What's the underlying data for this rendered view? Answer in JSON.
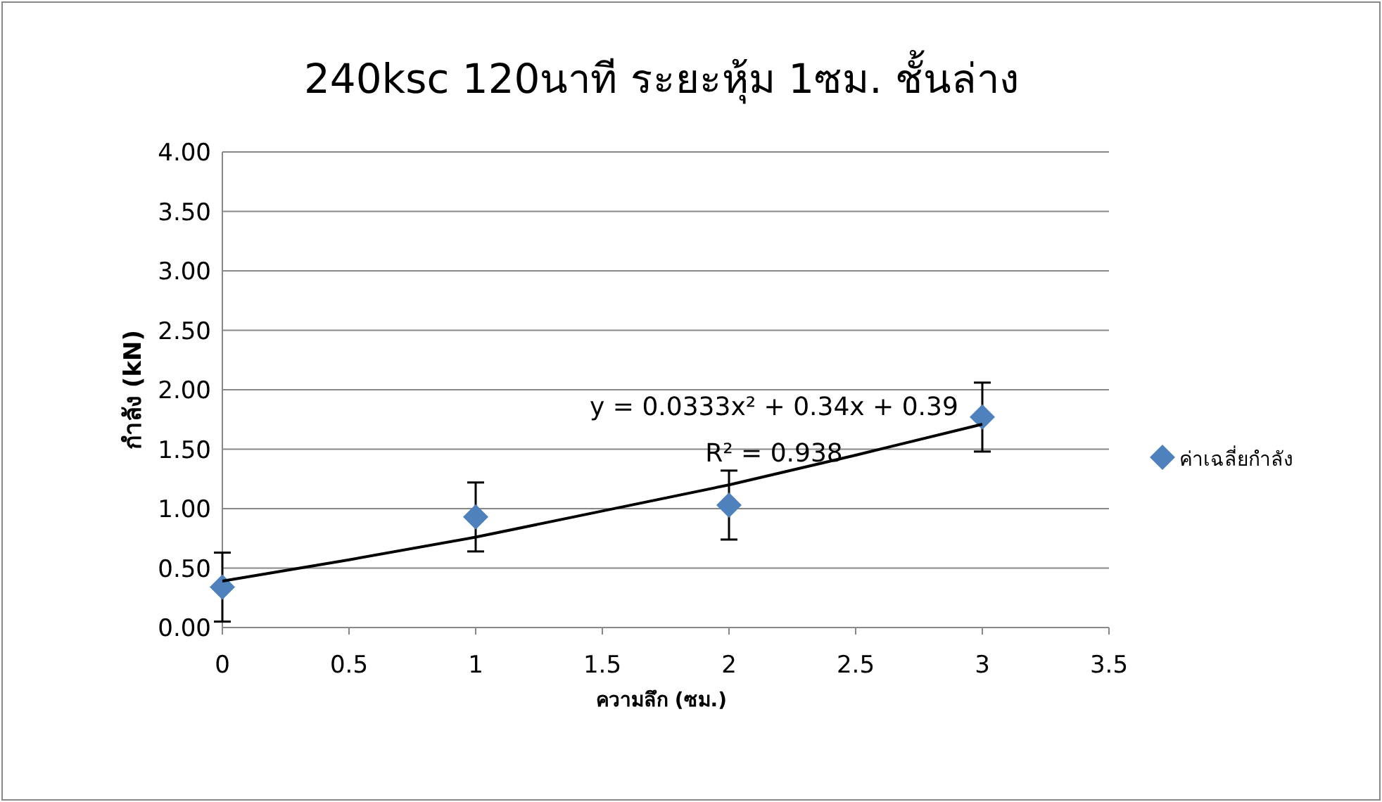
{
  "chart_data": {
    "type": "scatter",
    "title": "240ksc 120นาที ระยะหุ้ม 1ซม. ชั้นล่าง",
    "xlabel": "ความลึก (ซม.)",
    "ylabel": "กำลัง (kN)",
    "x": [
      0,
      1,
      2,
      3
    ],
    "series": [
      {
        "name": "ค่าเฉลี่ยกำลัง",
        "color": "#4f81bd",
        "marker": "diamond",
        "values": [
          0.34,
          0.93,
          1.03,
          1.77
        ],
        "errors": [
          0.29,
          0.29,
          0.29,
          0.29
        ]
      },
      {
        "type": "line",
        "color": "#000000",
        "marker": "none",
        "x": [
          0,
          0.5,
          1,
          1.5,
          2,
          2.5,
          3
        ],
        "values": [
          0.39,
          0.57,
          0.76,
          0.98,
          1.2,
          1.45,
          1.71
        ]
      }
    ],
    "annotations": [
      "y = 0.0333x² + 0.34x + 0.39",
      "R² = 0.938"
    ],
    "xlim": [
      0,
      3.5
    ],
    "xticks": [
      0,
      0.5,
      1,
      1.5,
      2,
      2.5,
      3,
      3.5
    ],
    "ylim": [
      0,
      4
    ],
    "yticks": [
      {
        "value": 0,
        "label": "0.00"
      },
      {
        "value": 0.5,
        "label": "0.50"
      },
      {
        "value": 1,
        "label": "1.00"
      },
      {
        "value": 1.5,
        "label": "1.50"
      },
      {
        "value": 2,
        "label": "2.00"
      },
      {
        "value": 2.5,
        "label": "2.50"
      },
      {
        "value": 3,
        "label": "3.00"
      },
      {
        "value": 3.5,
        "label": "3.50"
      },
      {
        "value": 4,
        "label": "4.00"
      }
    ],
    "grid": "y",
    "legend": "right"
  }
}
